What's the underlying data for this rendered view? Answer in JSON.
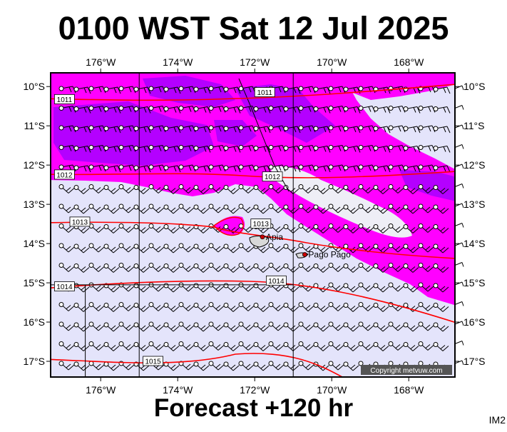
{
  "title": "0100 WST Sat 12 Jul 2025",
  "subtitle": "Forecast +120 hr",
  "corner_label": "IM2",
  "copyright": "Copyright metvuw.com",
  "map": {
    "lon_range": [
      -177.3,
      -166.8
    ],
    "lat_range": [
      -17.4,
      -9.65
    ],
    "lon_ticks": [
      {
        "value": -176,
        "label": "176°W"
      },
      {
        "value": -174,
        "label": "174°W"
      },
      {
        "value": -172,
        "label": "172°W"
      },
      {
        "value": -170,
        "label": "170°W"
      },
      {
        "value": -168,
        "label": "168°W"
      }
    ],
    "lat_ticks": [
      {
        "value": -10,
        "label": "10°S"
      },
      {
        "value": -11,
        "label": "11°S"
      },
      {
        "value": -12,
        "label": "12°S"
      },
      {
        "value": -13,
        "label": "13°S"
      },
      {
        "value": -14,
        "label": "14°S"
      },
      {
        "value": -15,
        "label": "15°S"
      },
      {
        "value": -16,
        "label": "16°S"
      },
      {
        "value": -17,
        "label": "17°S"
      }
    ],
    "places": [
      {
        "name": "Apia",
        "lon": -171.8,
        "lat": -13.83
      },
      {
        "name": "Pago Pago",
        "lon": -170.7,
        "lat": -14.28
      }
    ],
    "isobar_labels": [
      {
        "text": "1011",
        "lon": -177.2,
        "lat": -10.33
      },
      {
        "text": "1011",
        "lon": -172.0,
        "lat": -10.15
      },
      {
        "text": "1012",
        "lon": -177.2,
        "lat": -12.25
      },
      {
        "text": "1012",
        "lon": -171.8,
        "lat": -12.3
      },
      {
        "text": "1013",
        "lon": -176.8,
        "lat": -13.45
      },
      {
        "text": "1013",
        "lon": -172.1,
        "lat": -13.5
      },
      {
        "text": "1014",
        "lon": -177.2,
        "lat": -15.1
      },
      {
        "text": "1014",
        "lon": -171.7,
        "lat": -14.95
      },
      {
        "text": "1015",
        "lon": -174.9,
        "lat": -17.0
      }
    ],
    "colors": {
      "background": "#e4e4fb",
      "magenta": "#ff00ff",
      "violet": "#9b00ff",
      "isobar": "#ff0000",
      "frame": "#000000"
    }
  }
}
